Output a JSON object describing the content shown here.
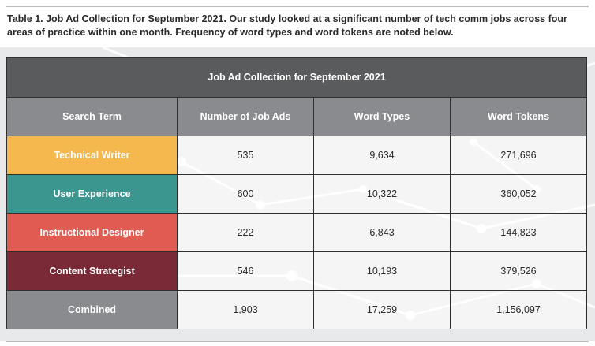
{
  "caption": "Table 1. Job Ad Collection for September 2021. Our study looked at a significant number of tech comm jobs across four areas of practice within one month. Frequency of word types and word tokens are noted below.",
  "table": {
    "title": "Job Ad Collection for September 2021",
    "headers": [
      "Search Term",
      "Number of Job Ads",
      "Word Types",
      "Word Tokens"
    ],
    "rows": [
      {
        "term": "Technical Writer",
        "ads": "535",
        "types": "9,634",
        "tokens": "271,696",
        "color": "#f5b84e"
      },
      {
        "term": "User Experience",
        "ads": "600",
        "types": "10,322",
        "tokens": "360,052",
        "color": "#3a968f"
      },
      {
        "term": "Instructional Designer",
        "ads": "222",
        "types": "6,843",
        "tokens": "144,823",
        "color": "#e05b52"
      },
      {
        "term": "Content Strategist",
        "ads": "546",
        "types": "10,193",
        "tokens": "379,526",
        "color": "#7a2a36"
      },
      {
        "term": "Combined",
        "ads": "1,903",
        "types": "17,259",
        "tokens": "1,156,097",
        "color": "#8a8b8e"
      }
    ]
  }
}
